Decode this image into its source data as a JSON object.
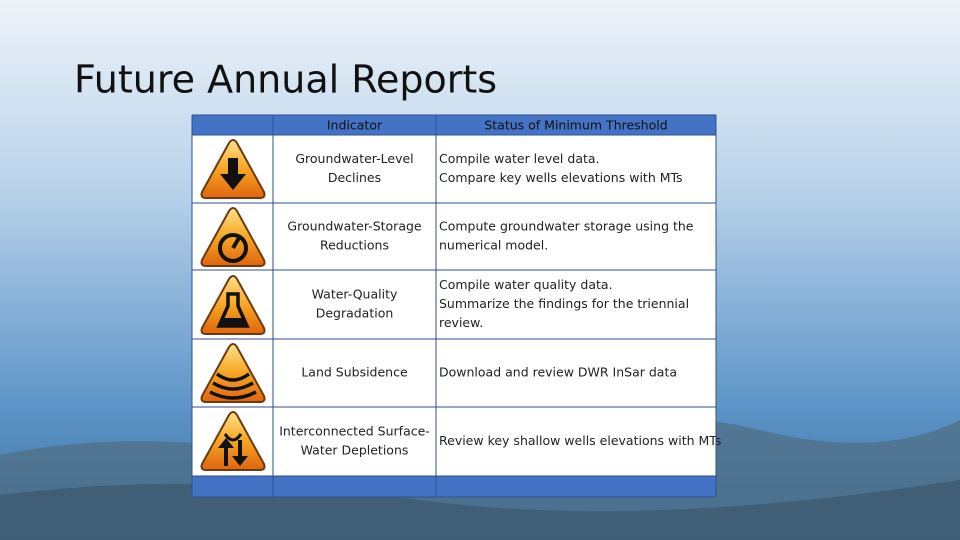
{
  "slide": {
    "title": "Future Annual Reports"
  },
  "table": {
    "header": [
      "Indicator",
      "Status of Minimum Threshold"
    ],
    "rows": [
      {
        "indicator": [
          "Groundwater-Level",
          "Declines"
        ],
        "status": [
          "Compile water level data.",
          "Compare key wells elevations with MTs"
        ]
      },
      {
        "indicator": [
          "Groundwater-Storage",
          "Reductions"
        ],
        "status": [
          "Compute groundwater storage using the",
          "numerical model."
        ]
      },
      {
        "indicator": [
          "Water-Quality",
          "Degradation"
        ],
        "status": [
          "Compile water quality data.",
          "Summarize the findings for the triennial",
          "review."
        ]
      },
      {
        "indicator": [
          "Land Subsidence"
        ],
        "status": [
          "Download and review DWR InSar data"
        ]
      },
      {
        "indicator": [
          "Interconnected Surface-",
          "Water Depletions"
        ],
        "status": [
          "Review key shallow wells elevations with MTs"
        ]
      }
    ]
  }
}
